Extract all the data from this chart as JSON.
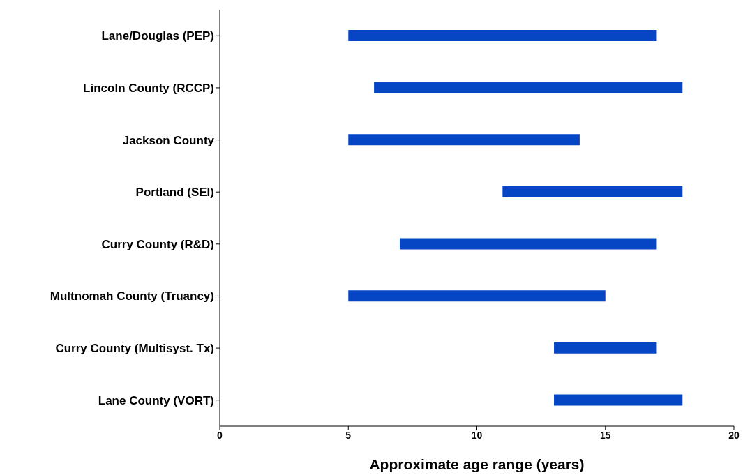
{
  "chart_data": {
    "type": "bar",
    "orientation": "horizontal",
    "xlabel": "Approximate age range (years)",
    "categories": [
      "Lane/Douglas (PEP)",
      "Lincoln County (RCCP)",
      "Jackson County",
      "Portland (SEI)",
      "Curry County (R&D)",
      "Multnomah County (Truancy)",
      "Curry County (Multisyst. Tx)",
      "Lane County (VORT)"
    ],
    "base": [
      5,
      6,
      5,
      11,
      7,
      5,
      13,
      13
    ],
    "values": [
      12,
      12,
      9,
      7,
      10,
      10,
      4,
      5
    ],
    "color": "#0645c4",
    "xlim": [
      0,
      20
    ],
    "xticks": [
      0,
      5,
      10,
      15,
      20
    ]
  }
}
